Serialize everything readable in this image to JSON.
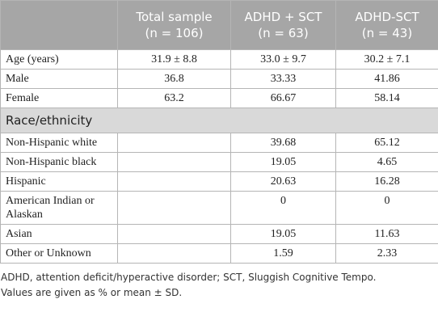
{
  "header": {
    "columns": [
      {
        "title": "Total sample",
        "n": "(n = 106)"
      },
      {
        "title": "ADHD + SCT",
        "n": "(n = 63)"
      },
      {
        "title": "ADHD-SCT",
        "n": "(n = 43)"
      }
    ]
  },
  "rows": [
    {
      "label": "Age (years)",
      "total": "31.9 ± 8.8",
      "with_sct": "33.0 ± 9.7",
      "without_sct": "30.2 ± 7.1"
    },
    {
      "label": "Male",
      "total": "36.8",
      "with_sct": "33.33",
      "without_sct": "41.86"
    },
    {
      "label": "Female",
      "total": "63.2",
      "with_sct": "66.67",
      "without_sct": "58.14"
    }
  ],
  "section": {
    "title": "Race/ethnicity",
    "rows": [
      {
        "label": "Non-Hispanic white",
        "with_sct": "39.68",
        "without_sct": "65.12"
      },
      {
        "label": "Non-Hispanic black",
        "with_sct": "19.05",
        "without_sct": "4.65"
      },
      {
        "label": "Hispanic",
        "with_sct": "20.63",
        "without_sct": "16.28"
      },
      {
        "label": "American Indian or Alaskan",
        "with_sct": "0",
        "without_sct": "0"
      },
      {
        "label": "Asian",
        "with_sct": "19.05",
        "without_sct": "11.63"
      },
      {
        "label": "Other or Unknown",
        "with_sct": "1.59",
        "without_sct": "2.33"
      }
    ]
  },
  "footnote": {
    "lines": [
      "ADHD, attention deficit/hyperactive disorder; SCT, Sluggish Cognitive Tempo.",
      "Values are given as % or mean ± SD."
    ]
  }
}
